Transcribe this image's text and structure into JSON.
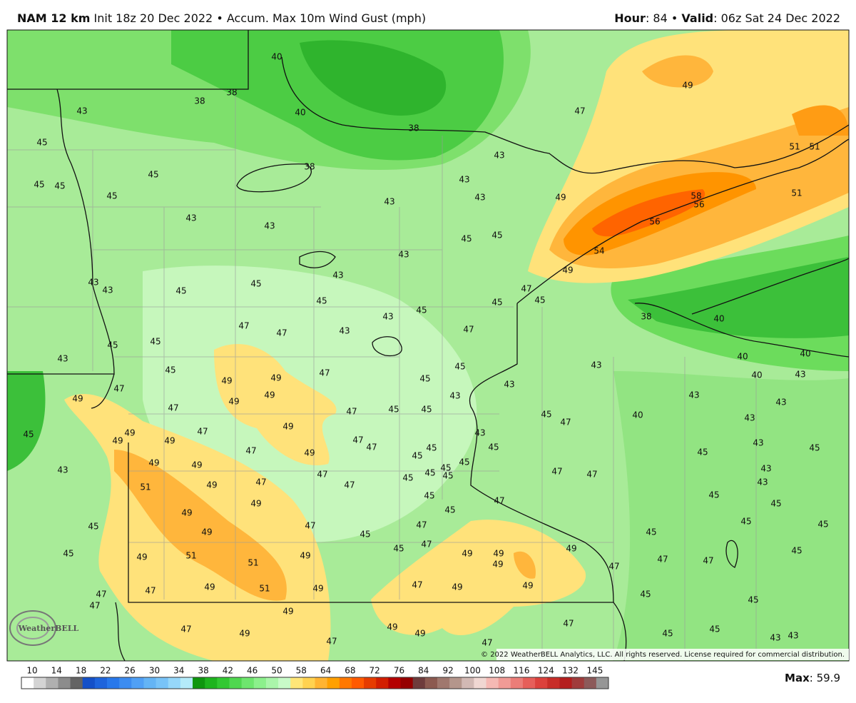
{
  "header": {
    "model": "NAM 12 km",
    "description": "Init 18z 20 Dec 2022 • Accum. Max 10m Wind Gust (mph)",
    "hour_label": "Hour",
    "hour_value": ": 84 •",
    "valid_label": "Valid",
    "valid_value": ": 06z Sat 24 Dec 2022"
  },
  "logo": "WeatherBELL",
  "copyright": "© 2022 WeatherBELL Analytics, LLC. All rights reserved. License required for commercial distribution.",
  "max_label": "Max",
  "max_value": ": 59.9",
  "colorbar": {
    "ticks": [
      10,
      14,
      18,
      22,
      26,
      30,
      34,
      38,
      42,
      46,
      50,
      58,
      64,
      68,
      72,
      76,
      84,
      92,
      100,
      108,
      116,
      124,
      132,
      145
    ],
    "colors": [
      "#ffffff",
      "#d4d4d4",
      "#b0b0b0",
      "#8c8c8c",
      "#646464",
      "#1450c8",
      "#1e64dc",
      "#2878eb",
      "#3c8cf0",
      "#50a0f5",
      "#64b4f5",
      "#78c3f8",
      "#96d7fa",
      "#b4ebfa",
      "#0f960f",
      "#1eb41e",
      "#32c832",
      "#50d750",
      "#6ee66e",
      "#8cf08c",
      "#aaf5aa",
      "#c8fac8",
      "#ffe678",
      "#ffd250",
      "#ffb432",
      "#ffa000",
      "#ff7800",
      "#ff5a00",
      "#e63c00",
      "#d21e00",
      "#b40000",
      "#960000",
      "#6e3c3c",
      "#8c5a50",
      "#a0786e",
      "#b4968c",
      "#d2b9b4",
      "#f0d7d2",
      "#f5b9b4",
      "#f09b96",
      "#eb7d78",
      "#e65f5a",
      "#dc413c",
      "#c82d28",
      "#b41e1e",
      "#a03c3c",
      "#8c5a5a",
      "#969696"
    ]
  },
  "map_labels": [
    40,
    38,
    38,
    43,
    40,
    47,
    49,
    38,
    45,
    43,
    51,
    51,
    38,
    45,
    45,
    45,
    45,
    43,
    43,
    43,
    49,
    58,
    56,
    51,
    43,
    43,
    45,
    45,
    56,
    43,
    54,
    43,
    49,
    43,
    43,
    45,
    45,
    47,
    45,
    45,
    45,
    45,
    43,
    38,
    40,
    47,
    47,
    43,
    47,
    45,
    45,
    43,
    40,
    40,
    45,
    49,
    49,
    47,
    45,
    45,
    43,
    40,
    43,
    47,
    43,
    49,
    49,
    43,
    49,
    43,
    43,
    47,
    47,
    45,
    45,
    45,
    47,
    40,
    43,
    49,
    49,
    47,
    49,
    49,
    43,
    45,
    47,
    47,
    47,
    49,
    45,
    45,
    45,
    45,
    43,
    45,
    49,
    49,
    45,
    45,
    45,
    45,
    45,
    47,
    47,
    47,
    43,
    43,
    43,
    51,
    49,
    47,
    47,
    45,
    47,
    45,
    45,
    49,
    45,
    49,
    45,
    47,
    47,
    45,
    45,
    49,
    45,
    45,
    47,
    45,
    49,
    49,
    49,
    45,
    49,
    51,
    49,
    49,
    47,
    47,
    45,
    51,
    47,
    47,
    49,
    49,
    49,
    51,
    49,
    47,
    47,
    47,
    45,
    45,
    49,
    47,
    49,
    49,
    47,
    49,
    45,
    45,
    43,
    43,
    47,
    47
  ]
}
